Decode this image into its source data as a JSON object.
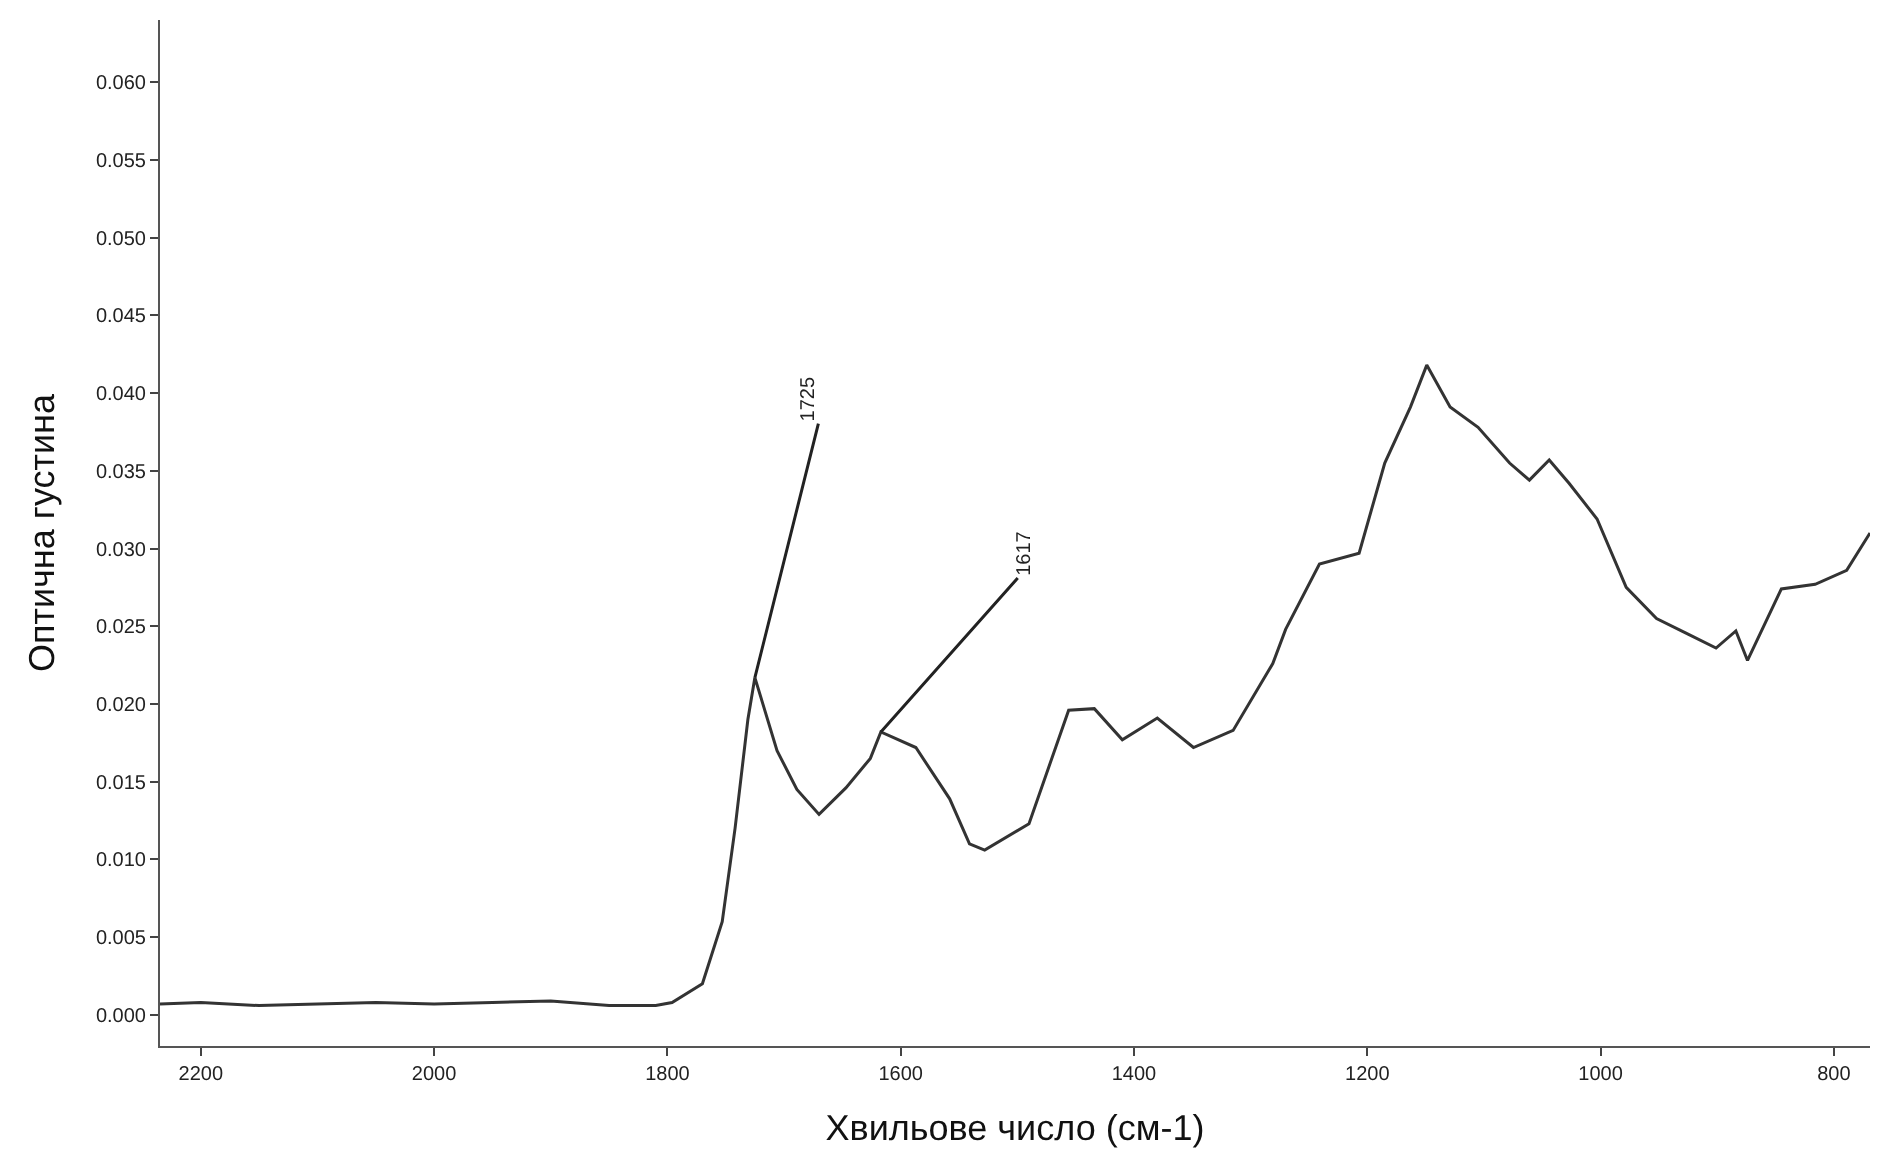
{
  "chart_data": {
    "type": "line",
    "xlabel": "Хвильове число (см-1)",
    "ylabel": "Оптична густина",
    "x": [
      2235,
      2200,
      2150,
      2100,
      2050,
      2000,
      1950,
      1900,
      1850,
      1810,
      1796,
      1770,
      1753,
      1742,
      1731,
      1725,
      1706,
      1689,
      1670,
      1647,
      1626,
      1617,
      1587,
      1558,
      1541,
      1528,
      1490,
      1456,
      1434,
      1410,
      1380,
      1349,
      1315,
      1281,
      1270,
      1241,
      1207,
      1185,
      1163,
      1149,
      1129,
      1105,
      1078,
      1061,
      1044,
      1027,
      1003,
      978,
      952,
      925,
      901,
      884,
      874,
      845,
      816,
      789,
      769
    ],
    "series": [
      {
        "color": "#333333",
        "values": [
          0.0007,
          0.0008,
          0.0006,
          0.0007,
          0.0008,
          0.0007,
          0.0008,
          0.0009,
          0.0006,
          0.0006,
          0.0008,
          0.002,
          0.006,
          0.012,
          0.019,
          0.0217,
          0.017,
          0.0145,
          0.0129,
          0.0146,
          0.0165,
          0.0182,
          0.0172,
          0.0139,
          0.011,
          0.0106,
          0.0123,
          0.0196,
          0.0197,
          0.0177,
          0.0191,
          0.0172,
          0.0183,
          0.0226,
          0.0248,
          0.029,
          0.0297,
          0.0355,
          0.0391,
          0.0418,
          0.0391,
          0.0378,
          0.0355,
          0.0344,
          0.0357,
          0.0342,
          0.0319,
          0.0275,
          0.0255,
          0.0245,
          0.0236,
          0.0247,
          0.0228,
          0.0274,
          0.0277,
          0.0286,
          0.031
        ]
      }
    ],
    "xlim": [
      2235,
      769
    ],
    "ylim": [
      -0.002,
      0.064
    ],
    "xticks": [
      2200,
      2000,
      1800,
      1600,
      1400,
      1200,
      1000,
      800
    ],
    "yticks": [
      {
        "value": 0,
        "label": "0.000"
      },
      {
        "value": 0.005,
        "label": "0.005"
      },
      {
        "value": 0.01,
        "label": "0.010"
      },
      {
        "value": 0.015,
        "label": "0.015"
      },
      {
        "value": 0.02,
        "label": "0.020"
      },
      {
        "value": 0.025,
        "label": "0.025"
      },
      {
        "value": 0.03,
        "label": "0.030"
      },
      {
        "value": 0.035,
        "label": "0.035"
      },
      {
        "value": 0.04,
        "label": "0.040"
      },
      {
        "value": 0.045,
        "label": "0.045"
      },
      {
        "value": 0.05,
        "label": "0.050"
      },
      {
        "value": 0.055,
        "label": "0.055"
      },
      {
        "value": 0.06,
        "label": "0.060"
      }
    ],
    "annotations": [
      {
        "text": "1725",
        "x": 1725,
        "y": 0.0217
      },
      {
        "text": "1617",
        "x": 1617,
        "y": 0.0182
      }
    ],
    "marker": "none",
    "line_style": "solid"
  }
}
